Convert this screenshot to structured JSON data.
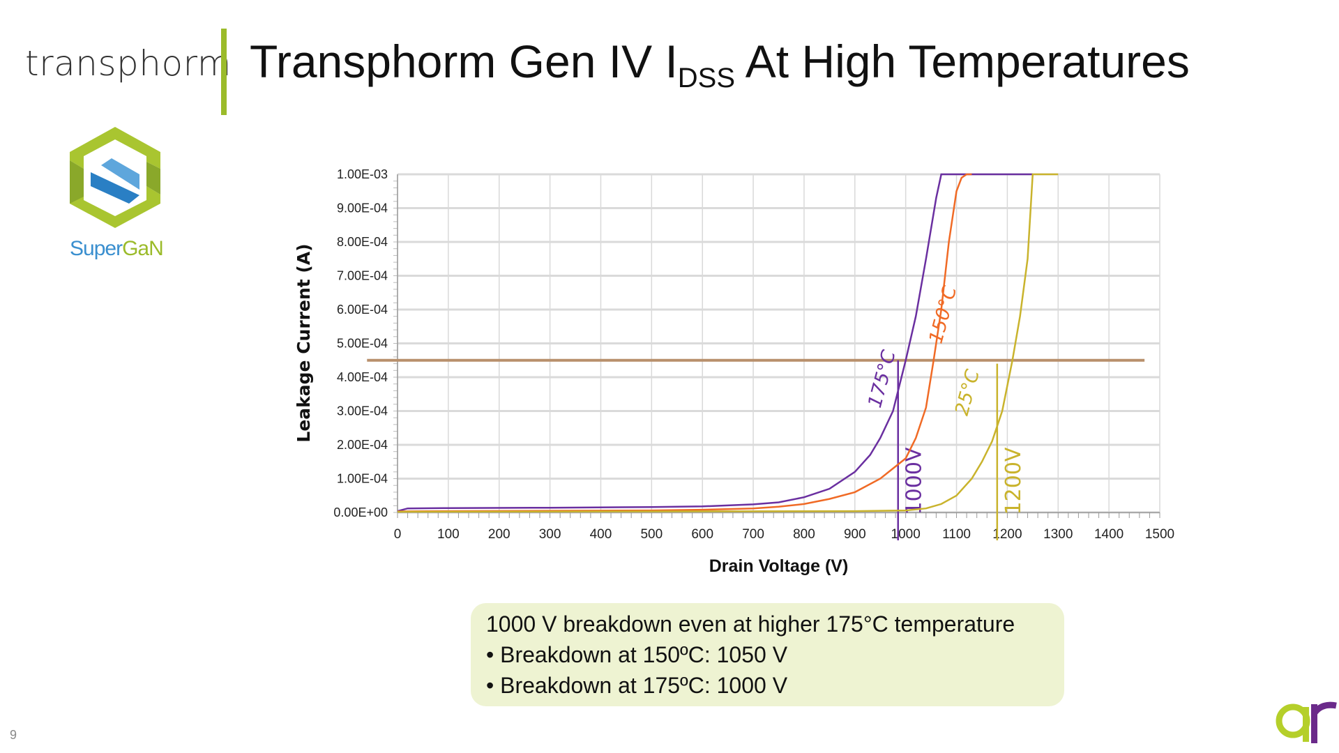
{
  "header": {
    "brand": "transphorm",
    "title_main": "Transphorm Gen IV I",
    "title_sub": "DSS",
    "title_rest": " At High Temperatures"
  },
  "logos": {
    "product_logo_text_a": "Super",
    "product_logo_text_b": "GaN",
    "corner_logo": "ar"
  },
  "page_number": "9",
  "callout": {
    "line1": "1000 V breakdown even at higher 175°C temperature",
    "line2": "• Breakdown at 150ºC:  1050 V",
    "line3": "• Breakdown at 175ºC:  1000 V"
  },
  "colors": {
    "t175": "#6a2fa0",
    "t150": "#f06a25",
    "t25": "#c9b32c",
    "threshold": "#b8906c",
    "accent_green": "#9bbb2a"
  },
  "chart_data": {
    "type": "line",
    "xlabel": "Drain Voltage (V)",
    "ylabel": "Leakage Current (A)",
    "xlim": [
      0,
      1500
    ],
    "ylim": [
      0,
      0.001
    ],
    "grid": true,
    "x_ticks": [
      "0",
      "100",
      "200",
      "300",
      "400",
      "500",
      "600",
      "700",
      "800",
      "900",
      "1000",
      "1100",
      "1200",
      "1300",
      "1400",
      "1500"
    ],
    "y_ticks": [
      "0.00E+00",
      "1.00E-04",
      "2.00E-04",
      "3.00E-04",
      "4.00E-04",
      "5.00E-04",
      "6.00E-04",
      "7.00E-04",
      "8.00E-04",
      "9.00E-04",
      "1.00E-03"
    ],
    "series": [
      {
        "key": "t175",
        "x": [
          0,
          20,
          100,
          300,
          500,
          600,
          700,
          750,
          800,
          850,
          900,
          930,
          950,
          975,
          1000,
          1020,
          1040,
          1060,
          1070,
          1250
        ],
        "y": [
          4e-06,
          1.2e-05,
          1.3e-05,
          1.4e-05,
          1.6e-05,
          1.8e-05,
          2.4e-05,
          3e-05,
          4.5e-05,
          7e-05,
          0.00012,
          0.00017,
          0.00022,
          0.0003,
          0.00045,
          0.00058,
          0.00075,
          0.00093,
          0.001,
          0.001
        ]
      },
      {
        "key": "t150",
        "x": [
          0,
          100,
          300,
          500,
          600,
          700,
          750,
          800,
          850,
          900,
          950,
          1000,
          1020,
          1040,
          1055,
          1070,
          1085,
          1100,
          1110,
          1120,
          1130
        ],
        "y": [
          3e-06,
          4e-06,
          5e-06,
          6e-06,
          8e-06,
          1.2e-05,
          1.7e-05,
          2.5e-05,
          4e-05,
          6e-05,
          0.0001,
          0.00016,
          0.00022,
          0.00031,
          0.00045,
          0.0006,
          0.0008,
          0.00095,
          0.00099,
          0.001,
          0.001
        ]
      },
      {
        "key": "t25",
        "x": [
          0,
          500,
          900,
          1000,
          1040,
          1070,
          1100,
          1130,
          1150,
          1170,
          1190,
          1210,
          1225,
          1240,
          1250,
          1300
        ],
        "y": [
          2e-06,
          3e-06,
          4e-06,
          6e-06,
          1.2e-05,
          2.5e-05,
          5e-05,
          0.0001,
          0.00015,
          0.00021,
          0.0003,
          0.00045,
          0.00058,
          0.00075,
          0.001,
          0.001
        ]
      }
    ],
    "reference_lines": [
      {
        "kind": "horizontal",
        "y": 0.00045,
        "x_from": -60,
        "x_to": 1470,
        "color_key": "threshold"
      },
      {
        "kind": "vertical",
        "x": 985,
        "y_top": 0.00045,
        "color_key": "t175",
        "label": "1000V"
      },
      {
        "kind": "vertical",
        "x": 1180,
        "y_top": 0.00044,
        "color_key": "t25",
        "label": "1200V"
      }
    ],
    "annotations": [
      {
        "text": "175°C",
        "x": 965,
        "y": 0.00039,
        "color_key": "t175"
      },
      {
        "text": "150°C",
        "x": 1085,
        "y": 0.00058,
        "color_key": "t150"
      },
      {
        "text": "25°C",
        "x": 1133,
        "y": 0.00035,
        "color_key": "t25"
      }
    ]
  }
}
